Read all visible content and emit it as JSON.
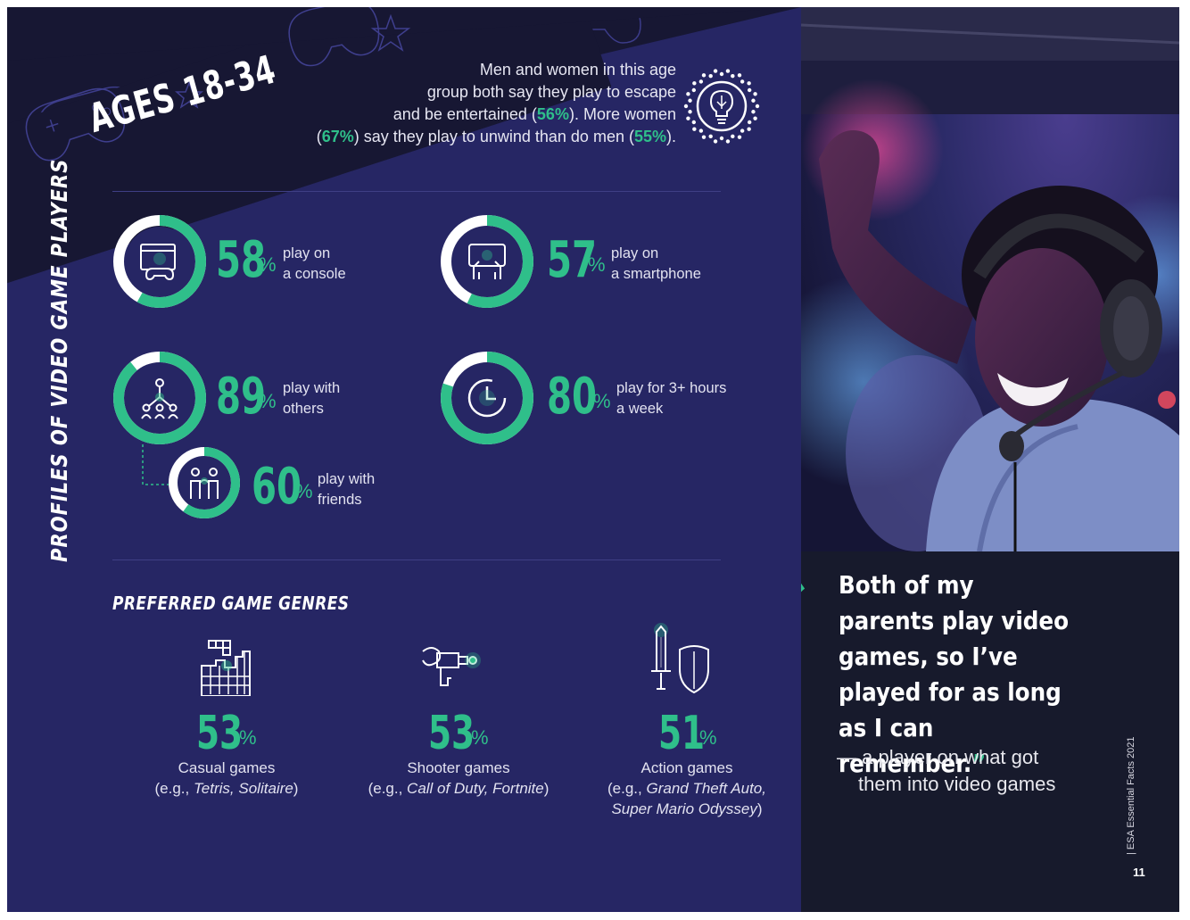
{
  "banner": {
    "title": "AGES 18-34"
  },
  "intro": {
    "line1": "Men and women in this age",
    "line2": "group both say they play to escape",
    "line3_pre": "and be entertained (",
    "line3_hl": "56%",
    "line3_post": "). More women",
    "line4_pre": "(",
    "line4_hl": "67%",
    "line4_mid": ") say they play to unwind than do men (",
    "line4_hl2": "55%",
    "line4_post": ")."
  },
  "side_title": "PROFILES OF VIDEO GAME PLAYERS",
  "stats": [
    {
      "value": "58",
      "pct": "%",
      "fraction": 0.58,
      "label1": "play on",
      "label2": "a console",
      "icon": "console-icon"
    },
    {
      "value": "57",
      "pct": "%",
      "fraction": 0.57,
      "label1": "play on",
      "label2": "a smartphone",
      "icon": "smartphone-icon"
    },
    {
      "value": "89",
      "pct": "%",
      "fraction": 0.89,
      "label1": "play with",
      "label2": "others",
      "icon": "network-people-icon"
    },
    {
      "value": "80",
      "pct": "%",
      "fraction": 0.8,
      "label1": "play for 3+ hours",
      "label2": "a week",
      "icon": "clock-icon"
    },
    {
      "value": "60",
      "pct": "%",
      "fraction": 0.6,
      "label1": "play with",
      "label2": "friends",
      "icon": "friends-icon"
    }
  ],
  "genres_heading": "PREFERRED GAME GENRES",
  "genres": [
    {
      "value": "53",
      "pct": "%",
      "name": "Casual games",
      "ex_pre": "(e.g., ",
      "ex_it": "Tetris, Solitaire",
      "ex_post": ")",
      "ex_line2": "",
      "icon": "blocks-icon"
    },
    {
      "value": "53",
      "pct": "%",
      "name": "Shooter games",
      "ex_pre": "(e.g., ",
      "ex_it": "Call of Duty, Fortnite",
      "ex_post": ")",
      "ex_line2": "",
      "icon": "blaster-icon"
    },
    {
      "value": "51",
      "pct": "%",
      "name": "Action games",
      "ex_pre": "(e.g., ",
      "ex_it": "Grand Theft Auto,",
      "ex_post": "",
      "ex_line2": "Super Mario Odyssey",
      "ex_line2_post": ")",
      "icon": "sword-shield-icon"
    }
  ],
  "quote": {
    "mark": "“",
    "text": "Both of my parents play video games, so I’ve played for as long as I can remember.",
    "close": "”",
    "attribution1": "— a player on what got",
    "attribution2": "them into video games"
  },
  "footer": {
    "label": "|  ESA Essential Facts 2021",
    "page": "11"
  },
  "colors": {
    "navy": "#262664",
    "dark": "#171a2c",
    "green": "#2fbf8a"
  }
}
